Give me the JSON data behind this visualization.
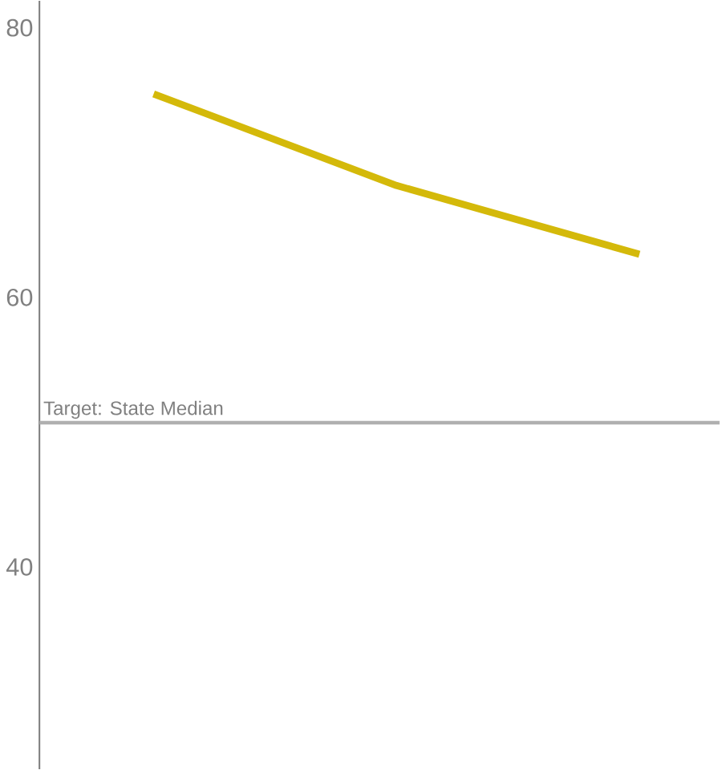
{
  "chart_data": {
    "type": "line",
    "categories": [
      null,
      null,
      null
    ],
    "series": [
      {
        "color": "#d4b90a",
        "values": [
          75.1,
          68.3,
          63.2
        ]
      }
    ],
    "ylim": [
      25,
      82
    ],
    "yticks": [
      40,
      60,
      80
    ],
    "grid": false,
    "marker": "none",
    "line_style": "solid",
    "ref_lines": [
      {
        "axis": "y",
        "value": 50.7,
        "label": "Target: State Median",
        "color": "#b0b0b0"
      }
    ]
  }
}
